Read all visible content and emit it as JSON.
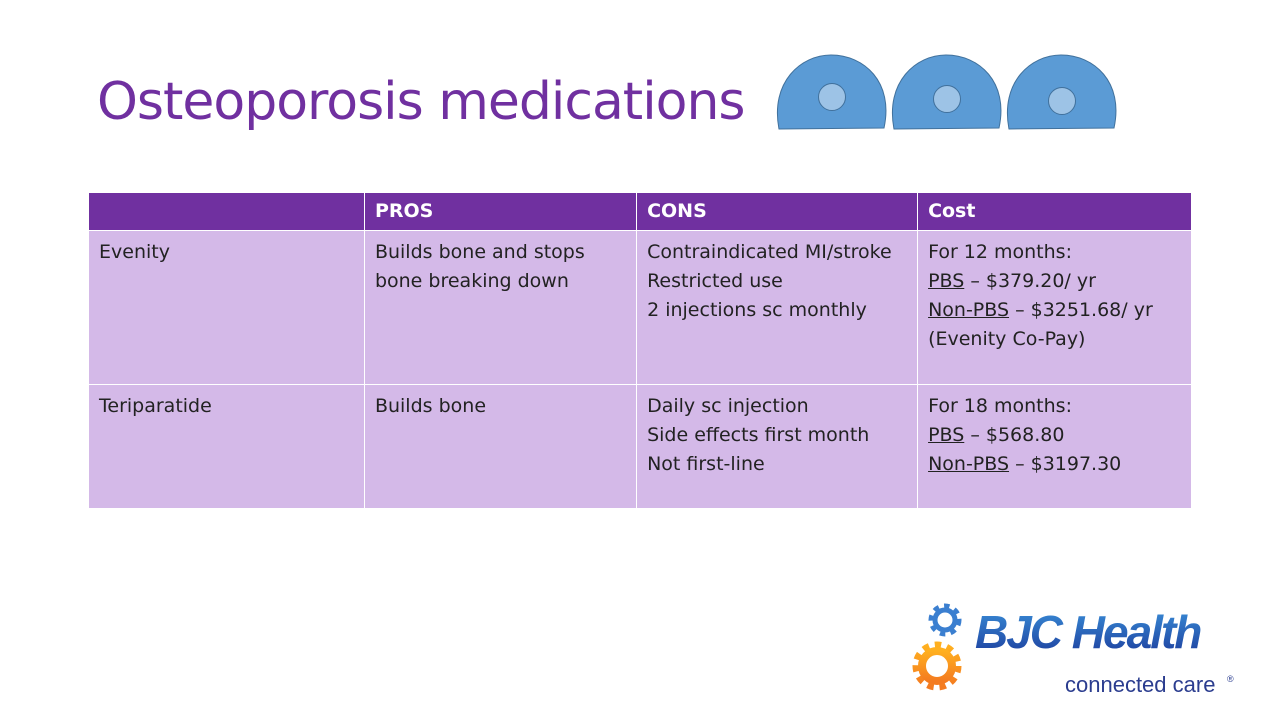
{
  "title": "Osteoporosis medications",
  "table": {
    "headers": [
      "",
      "PROS",
      "CONS",
      "Cost"
    ],
    "rows": [
      {
        "name": "Evenity",
        "pros": [
          "Builds bone and stops",
          "bone breaking down"
        ],
        "cons": [
          "Contraindicated MI/stroke",
          "Restricted use",
          "2 injections sc monthly"
        ],
        "cost": {
          "intro": "For 12 months:",
          "pbs_label": "PBS",
          "pbs_value": " – $379.20/ yr",
          "nonpbs_label": "Non-PBS",
          "nonpbs_value": " – $3251.68/ yr",
          "note": "(Evenity Co-Pay)"
        }
      },
      {
        "name": "Teriparatide",
        "pros": [
          "Builds bone"
        ],
        "cons": [
          "Daily sc injection",
          "Side effects first month",
          "Not first-line"
        ],
        "cost": {
          "intro": "For 18 months:",
          "pbs_label": "PBS",
          "pbs_value": " – $568.80",
          "nonpbs_label": "Non-PBS",
          "nonpbs_value": " – $3197.30"
        }
      }
    ]
  },
  "logo": {
    "name": "BJC Health",
    "tagline": "connected care"
  },
  "colors": {
    "accent": "#7030a0",
    "row": "#d4b9e8",
    "bone": "#5b9bd5",
    "marrow": "#9dc3e6"
  }
}
